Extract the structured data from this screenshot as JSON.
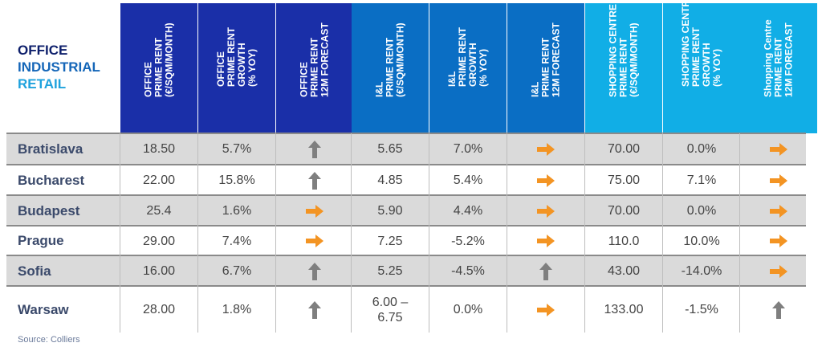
{
  "legend": {
    "office": "OFFICE",
    "industrial": "INDUSTRIAL",
    "retail": "RETAIL"
  },
  "columns": [
    {
      "key": "office_rent",
      "label": "OFFICE\nPRIME RENT\n(€/SQM/MONTH)",
      "group": "office"
    },
    {
      "key": "office_growth",
      "label": "OFFICE\nPRIME RENT\nGROWTH\n(% YOY)",
      "group": "office"
    },
    {
      "key": "office_forecast",
      "label": "OFFICE\nPRIME RENT\n12M FORECAST",
      "group": "office"
    },
    {
      "key": "il_rent",
      "label": "I&L\nPRIME RENT\n(€/SQM/MONTH)",
      "group": "industrial"
    },
    {
      "key": "il_growth",
      "label": "I&L\nPRIME RENT\nGROWTH\n(% YOY)",
      "group": "industrial"
    },
    {
      "key": "il_forecast",
      "label": "I&L\nPRIME RENT\n12M FORECAST",
      "group": "industrial"
    },
    {
      "key": "sc_rent",
      "label": "SHOPPING CENTRE\nPRIME RENT\n(€/SQM/MONTH)",
      "group": "retail"
    },
    {
      "key": "sc_growth",
      "label": "SHOPPING CENTRE\nPRIME RENT\nGROWTH\n(% YOY)",
      "group": "retail"
    },
    {
      "key": "sc_forecast",
      "label": "Shopping Centre\nPRIME RENT\n12M FORECAST",
      "group": "retail"
    }
  ],
  "colors": {
    "office_header": "#1a2fa8",
    "industrial_header": "#0a6ec4",
    "retail_header": "#11aee6",
    "arrow_up": "#7f7f7f",
    "arrow_right": "#f39423",
    "row_shade": "#dadada"
  },
  "rows": [
    {
      "city": "Bratislava",
      "values": [
        "18.50",
        "5.7%",
        "up",
        "5.65",
        "7.0%",
        "right",
        "70.00",
        "0.0%",
        "right"
      ]
    },
    {
      "city": "Bucharest",
      "values": [
        "22.00",
        "15.8%",
        "up",
        "4.85",
        "5.4%",
        "right",
        "75.00",
        "7.1%",
        "right"
      ]
    },
    {
      "city": "Budapest",
      "values": [
        "25.4",
        "1.6%",
        "right",
        "5.90",
        "4.4%",
        "right",
        "70.00",
        "0.0%",
        "right"
      ]
    },
    {
      "city": "Prague",
      "values": [
        "29.00",
        "7.4%",
        "right",
        "7.25",
        "-5.2%",
        "right",
        "110.0",
        "10.0%",
        "right"
      ]
    },
    {
      "city": "Sofia",
      "values": [
        "16.00",
        "6.7%",
        "up",
        "5.25",
        "-4.5%",
        "up",
        "43.00",
        "-14.0%",
        "right"
      ]
    },
    {
      "city": "Warsaw",
      "values": [
        "28.00",
        "1.8%",
        "up",
        "6.00 –\n6.75",
        "0.0%",
        "right",
        "133.00",
        "-1.5%",
        "up"
      ]
    }
  ],
  "source": "Source: Colliers"
}
